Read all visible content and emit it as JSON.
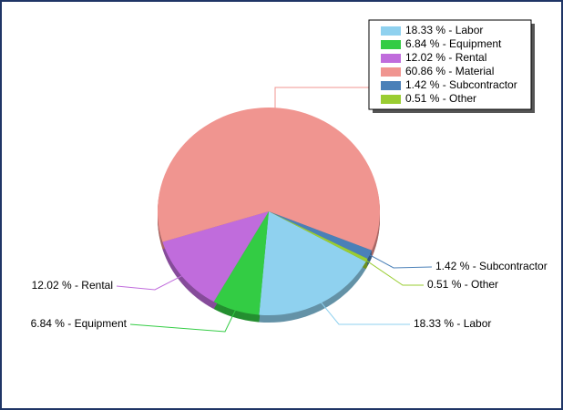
{
  "chart_data": {
    "type": "pie",
    "values": [
      18.33,
      6.84,
      12.02,
      60.86,
      1.42,
      0.51
    ],
    "value_labels": [
      "18.33 % - Labor",
      "6.84 % - Equipment",
      "12.02 % - Rental",
      "60.86 % - Material",
      "1.42 % - Subcontractor",
      "0.51 % - Other"
    ],
    "colors": [
      "#8fd1ef",
      "#33cc44",
      "#c06cdc",
      "#f09590",
      "#4a80b8",
      "#9acd32"
    ],
    "legend": "top-right"
  }
}
